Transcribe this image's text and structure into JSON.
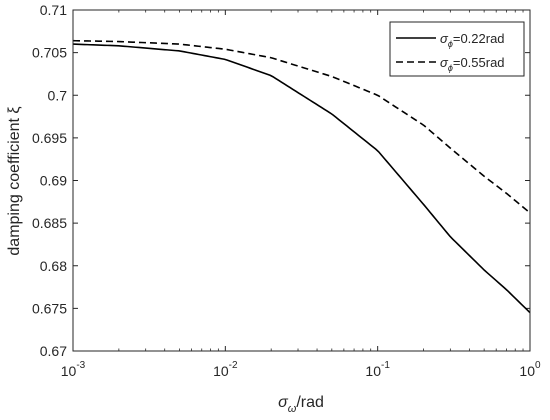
{
  "chart_data": {
    "type": "line",
    "title": "",
    "xlabel": {
      "main": "σ",
      "sub": "ω",
      "suffix": "/rad"
    },
    "ylabel": "damping coefficient ξ",
    "x_scale": "log",
    "xlim": [
      0.001,
      1
    ],
    "ylim": [
      0.67,
      0.71
    ],
    "x_ticks": [
      {
        "value": 0.001,
        "base": "10",
        "exp": "-3"
      },
      {
        "value": 0.01,
        "base": "10",
        "exp": "-2"
      },
      {
        "value": 0.1,
        "base": "10",
        "exp": "-1"
      },
      {
        "value": 1,
        "base": "10",
        "exp": "0"
      }
    ],
    "y_ticks": [
      {
        "value": 0.67,
        "label": "0.67"
      },
      {
        "value": 0.675,
        "label": "0.675"
      },
      {
        "value": 0.68,
        "label": "0.68"
      },
      {
        "value": 0.685,
        "label": "0.685"
      },
      {
        "value": 0.69,
        "label": "0.69"
      },
      {
        "value": 0.695,
        "label": "0.695"
      },
      {
        "value": 0.7,
        "label": "0.7"
      },
      {
        "value": 0.705,
        "label": "0.705"
      },
      {
        "value": 0.71,
        "label": "0.71"
      }
    ],
    "grid": false,
    "legend": "top-right",
    "series": [
      {
        "name": "σϕ=0.22rad",
        "legend": {
          "main": "σ",
          "sub": "ϕ",
          "suffix": "=0.22rad"
        },
        "style": "solid",
        "color": "#000000",
        "x": [
          0.001,
          0.002,
          0.005,
          0.01,
          0.02,
          0.05,
          0.1,
          0.2,
          0.3,
          0.5,
          0.7,
          1.0
        ],
        "y": [
          0.706,
          0.7058,
          0.7052,
          0.7042,
          0.7023,
          0.6978,
          0.6935,
          0.6872,
          0.6834,
          0.6795,
          0.6772,
          0.6745
        ]
      },
      {
        "name": "σϕ=0.55rad",
        "legend": {
          "main": "σ",
          "sub": "ϕ",
          "suffix": "=0.55rad"
        },
        "style": "dashed",
        "color": "#000000",
        "x": [
          0.001,
          0.002,
          0.005,
          0.01,
          0.02,
          0.05,
          0.1,
          0.2,
          0.3,
          0.5,
          0.7,
          1.0
        ],
        "y": [
          0.7064,
          0.7063,
          0.706,
          0.7054,
          0.7044,
          0.7022,
          0.7,
          0.6965,
          0.6938,
          0.6905,
          0.6885,
          0.6862
        ]
      }
    ]
  }
}
